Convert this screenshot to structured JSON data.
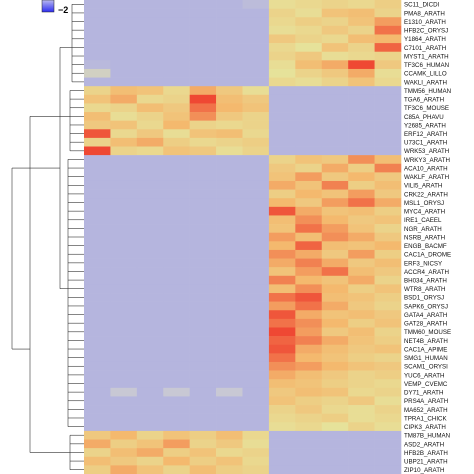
{
  "chart_data": {
    "type": "heatmap",
    "title": "",
    "xlabel": "",
    "ylabel": "",
    "legend": {
      "placement": "top-left",
      "visible_ticks": [
        "−2"
      ]
    },
    "color_scale": {
      "low": "#a9a9e4",
      "lowmid": "#c8c8d4",
      "mid": "#e6e29a",
      "midhigh": "#f4b96e",
      "high": "#ee3a2c"
    },
    "value_range": [
      -2,
      2
    ],
    "columns": 12,
    "rows": [
      {
        "label": "SC11_DICDI",
        "values": [
          -1.6,
          -1.6,
          -1.6,
          -1.6,
          -1.6,
          -1.6,
          -1.4,
          0.4,
          0.5,
          0.6,
          0.5,
          0.7
        ]
      },
      {
        "label": "PMA8_ARATH",
        "values": [
          -1.6,
          -1.6,
          -1.6,
          -1.6,
          -1.6,
          -1.6,
          -1.6,
          0.6,
          0.4,
          0.9,
          1.0,
          0.6
        ]
      },
      {
        "label": "E1310_ARATH",
        "values": [
          -1.6,
          -1.6,
          -1.6,
          -1.6,
          -1.6,
          -1.6,
          -1.6,
          0.5,
          0.7,
          0.6,
          0.9,
          1.3
        ]
      },
      {
        "label": "HFB2C_ORYSJ",
        "values": [
          -1.6,
          -1.6,
          -1.6,
          -1.6,
          -1.6,
          -1.6,
          -1.6,
          0.4,
          0.5,
          0.8,
          0.6,
          1.6
        ]
      },
      {
        "label": "Y1864_ARATH",
        "values": [
          -1.6,
          -1.6,
          -1.6,
          -1.6,
          -1.6,
          -1.6,
          -1.6,
          0.8,
          0.6,
          0.5,
          1.0,
          1.1
        ]
      },
      {
        "label": "C7101_ARATH",
        "values": [
          -1.6,
          -1.6,
          -1.6,
          -1.6,
          -1.6,
          -1.6,
          -1.6,
          0.5,
          0.3,
          0.9,
          0.6,
          1.7
        ]
      },
      {
        "label": "MYST1_ARATH",
        "values": [
          -1.6,
          -1.6,
          -1.6,
          -1.6,
          -1.6,
          -1.6,
          -1.6,
          0.6,
          0.8,
          0.4,
          0.5,
          0.6
        ]
      },
      {
        "label": "TF3C6_HUMAN",
        "values": [
          -1.5,
          -1.6,
          -1.6,
          -1.6,
          -1.6,
          -1.6,
          -1.6,
          0.4,
          1.0,
          1.2,
          1.9,
          0.8
        ]
      },
      {
        "label": "CCAMK_LILLO",
        "values": [
          -0.6,
          -1.6,
          -1.6,
          -1.6,
          -1.6,
          -1.6,
          -1.6,
          0.3,
          0.6,
          0.8,
          1.2,
          0.4
        ]
      },
      {
        "label": "WAKLI_ARATH",
        "values": [
          -1.6,
          -1.6,
          -1.6,
          -1.6,
          -1.6,
          -1.6,
          -1.6,
          0.5,
          0.4,
          0.6,
          0.9,
          0.5
        ]
      },
      {
        "label": "TMM56_HUMAN",
        "values": [
          0.6,
          1.0,
          0.9,
          0.5,
          1.2,
          0.8,
          0.4,
          -1.6,
          -1.6,
          -1.6,
          -1.6,
          -1.6
        ]
      },
      {
        "label": "TGA6_ARATH",
        "values": [
          0.9,
          1.2,
          0.5,
          0.6,
          1.9,
          1.0,
          0.8,
          -1.6,
          -1.6,
          -1.6,
          -1.6,
          -1.6
        ]
      },
      {
        "label": "TF3C6_MOUSE",
        "values": [
          0.5,
          0.6,
          1.0,
          0.8,
          1.6,
          1.1,
          0.9,
          -1.6,
          -1.6,
          -1.6,
          -1.6,
          -1.6
        ]
      },
      {
        "label": "C85A_PHAVU",
        "values": [
          1.0,
          0.4,
          0.6,
          0.9,
          1.4,
          0.8,
          0.6,
          -1.6,
          -1.6,
          -1.6,
          -1.6,
          -1.6
        ]
      },
      {
        "label": "Y2685_ARATH",
        "values": [
          0.8,
          0.9,
          0.5,
          1.1,
          0.6,
          0.5,
          0.6,
          -1.6,
          -1.6,
          -1.6,
          -1.6,
          -1.6
        ]
      },
      {
        "label": "ERF12_ARATH",
        "values": [
          1.8,
          0.5,
          0.8,
          0.4,
          0.9,
          1.0,
          0.5,
          -1.6,
          -1.6,
          -1.6,
          -1.6,
          -1.6
        ]
      },
      {
        "label": "U73C1_ARATH",
        "values": [
          0.6,
          1.0,
          1.2,
          0.7,
          0.5,
          0.6,
          0.7,
          -1.6,
          -1.6,
          -1.6,
          -1.6,
          -1.6
        ]
      },
      {
        "label": "WRK53_ARATH",
        "values": [
          1.9,
          0.6,
          0.5,
          0.9,
          0.8,
          0.4,
          0.6,
          -1.6,
          -1.6,
          -1.6,
          -1.6,
          -1.6
        ]
      },
      {
        "label": "WRKY3_ARATH",
        "values": [
          -1.6,
          -1.6,
          -1.6,
          -1.6,
          -1.6,
          -1.6,
          -1.6,
          0.6,
          0.9,
          0.8,
          1.4,
          1.0
        ]
      },
      {
        "label": "ACA10_ARATH",
        "values": [
          -1.6,
          -1.6,
          -1.6,
          -1.6,
          -1.6,
          -1.6,
          -1.6,
          0.8,
          0.6,
          1.2,
          0.7,
          1.5
        ]
      },
      {
        "label": "WAKLF_ARATH",
        "values": [
          -1.6,
          -1.6,
          -1.6,
          -1.6,
          -1.6,
          -1.6,
          -1.6,
          0.9,
          1.3,
          0.8,
          1.1,
          0.8
        ]
      },
      {
        "label": "VILI5_ARATH",
        "values": [
          -1.6,
          -1.6,
          -1.6,
          -1.6,
          -1.6,
          -1.6,
          -1.6,
          1.2,
          0.9,
          1.5,
          0.7,
          1.0
        ]
      },
      {
        "label": "CRK22_ARATH",
        "values": [
          -1.6,
          -1.6,
          -1.6,
          -1.6,
          -1.6,
          -1.6,
          -1.6,
          0.7,
          1.1,
          0.9,
          1.3,
          0.8
        ]
      },
      {
        "label": "MSL1_ORYSJ",
        "values": [
          -1.6,
          -1.6,
          -1.6,
          -1.6,
          -1.6,
          -1.6,
          -1.6,
          1.1,
          0.8,
          1.3,
          1.6,
          1.2
        ]
      },
      {
        "label": "MYC4_ARATH",
        "values": [
          -1.6,
          -1.6,
          -1.6,
          -1.6,
          -1.6,
          -1.6,
          -1.6,
          1.8,
          1.2,
          0.9,
          1.0,
          0.7
        ]
      },
      {
        "label": "IRE1_CAEEL",
        "values": [
          -1.6,
          -1.6,
          -1.6,
          -1.6,
          -1.6,
          -1.6,
          -1.6,
          1.0,
          1.4,
          1.1,
          0.8,
          0.9
        ]
      },
      {
        "label": "NGR_ARATH",
        "values": [
          -1.6,
          -1.6,
          -1.6,
          -1.6,
          -1.6,
          -1.6,
          -1.6,
          0.9,
          1.6,
          1.3,
          0.9,
          0.6
        ]
      },
      {
        "label": "NSRB_ARATH",
        "values": [
          -1.6,
          -1.6,
          -1.6,
          -1.6,
          -1.6,
          -1.6,
          -1.6,
          1.3,
          1.0,
          1.4,
          1.2,
          0.8
        ]
      },
      {
        "label": "ENGB_BACMF",
        "values": [
          -1.6,
          -1.6,
          -1.6,
          -1.6,
          -1.6,
          -1.6,
          -1.6,
          1.1,
          1.7,
          1.0,
          0.9,
          1.1
        ]
      },
      {
        "label": "CAC1A_DROME",
        "values": [
          -1.6,
          -1.6,
          -1.6,
          -1.6,
          -1.6,
          -1.6,
          -1.6,
          1.4,
          1.2,
          0.8,
          1.3,
          0.7
        ]
      },
      {
        "label": "ERF3_NICSY",
        "values": [
          -1.6,
          -1.6,
          -1.6,
          -1.6,
          -1.6,
          -1.6,
          -1.6,
          1.2,
          1.5,
          1.2,
          0.8,
          1.0
        ]
      },
      {
        "label": "ACCR4_ARATH",
        "values": [
          -1.6,
          -1.6,
          -1.6,
          -1.6,
          -1.6,
          -1.6,
          -1.6,
          0.9,
          1.3,
          1.6,
          1.0,
          0.8
        ]
      },
      {
        "label": "BH034_ARATH",
        "values": [
          -1.6,
          -1.6,
          -1.6,
          -1.6,
          -1.6,
          -1.6,
          -1.6,
          1.5,
          1.1,
          0.9,
          1.2,
          0.6
        ]
      },
      {
        "label": "WTR8_ARATH",
        "values": [
          -1.6,
          -1.6,
          -1.6,
          -1.6,
          -1.6,
          -1.6,
          -1.6,
          1.0,
          1.4,
          1.1,
          0.7,
          0.9
        ]
      },
      {
        "label": "BSD1_ORYSJ",
        "values": [
          -1.6,
          -1.6,
          -1.6,
          -1.6,
          -1.6,
          -1.6,
          -1.6,
          1.6,
          1.8,
          1.0,
          0.9,
          0.7
        ]
      },
      {
        "label": "SAPK6_ORYSJ",
        "values": [
          -1.6,
          -1.6,
          -1.6,
          -1.6,
          -1.6,
          -1.6,
          -1.6,
          1.3,
          1.6,
          1.2,
          0.8,
          0.6
        ]
      },
      {
        "label": "GATA4_ARATH",
        "values": [
          -1.6,
          -1.6,
          -1.6,
          -1.6,
          -1.6,
          -1.6,
          -1.6,
          1.8,
          1.2,
          0.9,
          1.0,
          0.8
        ]
      },
      {
        "label": "GAT28_ARATH",
        "values": [
          -1.6,
          -1.6,
          -1.6,
          -1.6,
          -1.6,
          -1.6,
          -1.6,
          1.6,
          1.4,
          1.1,
          0.7,
          0.9
        ]
      },
      {
        "label": "TMM60_MOUSE",
        "values": [
          -1.6,
          -1.6,
          -1.6,
          -1.6,
          -1.6,
          -1.6,
          -1.6,
          1.9,
          1.3,
          0.8,
          1.0,
          0.6
        ]
      },
      {
        "label": "NET4B_ARATH",
        "values": [
          -1.6,
          -1.6,
          -1.6,
          -1.6,
          -1.6,
          -1.6,
          -1.6,
          1.7,
          1.5,
          1.2,
          0.9,
          0.7
        ]
      },
      {
        "label": "CAC1A_APIME",
        "values": [
          -1.6,
          -1.6,
          -1.6,
          -1.6,
          -1.6,
          -1.6,
          -1.6,
          1.8,
          1.2,
          1.0,
          0.8,
          0.9
        ]
      },
      {
        "label": "SMG1_HUMAN",
        "values": [
          -1.6,
          -1.6,
          -1.6,
          -1.6,
          -1.6,
          -1.6,
          -1.6,
          1.6,
          1.1,
          0.9,
          0.7,
          0.6
        ]
      },
      {
        "label": "SCAM1_ORYSI",
        "values": [
          -1.6,
          -1.6,
          -1.6,
          -1.6,
          -1.6,
          -1.6,
          -1.6,
          1.4,
          1.3,
          1.1,
          0.9,
          0.8
        ]
      },
      {
        "label": "YUC6_ARATH",
        "values": [
          -1.6,
          -1.6,
          -1.6,
          -1.6,
          -1.6,
          -1.6,
          -1.6,
          1.2,
          1.0,
          0.8,
          0.6,
          0.7
        ]
      },
      {
        "label": "VEMP_CVEMC",
        "values": [
          -1.6,
          -1.6,
          -1.6,
          -1.6,
          -1.6,
          -1.6,
          -1.6,
          1.0,
          0.9,
          0.7,
          0.6,
          0.5
        ]
      },
      {
        "label": "DY71_ARATH",
        "values": [
          -1.6,
          -1.0,
          -1.6,
          -1.0,
          -1.6,
          -1.0,
          -1.6,
          0.8,
          1.0,
          0.9,
          0.5,
          0.6
        ]
      },
      {
        "label": "PRS4A_ARATH",
        "values": [
          -1.6,
          -1.6,
          -1.6,
          -1.6,
          -1.6,
          -1.6,
          -1.6,
          0.9,
          0.7,
          0.6,
          0.8,
          0.4
        ]
      },
      {
        "label": "MA652_ARATH",
        "values": [
          -1.6,
          -1.6,
          -1.6,
          -1.6,
          -1.6,
          -1.6,
          -1.6,
          0.6,
          0.8,
          0.5,
          0.4,
          0.6
        ]
      },
      {
        "label": "TPRA1_CHICK",
        "values": [
          -1.6,
          -1.6,
          -1.6,
          -1.6,
          -1.6,
          -1.6,
          -1.6,
          0.5,
          0.6,
          0.7,
          0.4,
          0.5
        ]
      },
      {
        "label": "CIPK3_ARATH",
        "values": [
          -1.6,
          -1.6,
          -1.6,
          -1.6,
          -1.6,
          -1.6,
          -1.6,
          0.4,
          0.5,
          0.3,
          0.6,
          0.4
        ]
      },
      {
        "label": "TM87B_HUMAN",
        "values": [
          0.8,
          1.1,
          0.6,
          0.9,
          0.7,
          1.0,
          0.5,
          -1.6,
          -1.6,
          -1.6,
          -1.6,
          -1.6
        ]
      },
      {
        "label": "ASD2_ARATH",
        "values": [
          1.2,
          0.7,
          0.9,
          1.3,
          0.6,
          0.8,
          0.4,
          -1.6,
          -1.6,
          -1.6,
          -1.6,
          -1.6
        ]
      },
      {
        "label": "HFB2B_ARATH",
        "values": [
          0.6,
          1.0,
          1.2,
          0.7,
          0.9,
          0.5,
          0.6,
          -1.6,
          -1.6,
          -1.6,
          -1.6,
          -1.6
        ]
      },
      {
        "label": "UBP21_ARATH",
        "values": [
          1.0,
          0.8,
          0.6,
          1.1,
          0.7,
          0.9,
          0.5,
          -1.6,
          -1.6,
          -1.6,
          -1.6,
          -1.6
        ]
      },
      {
        "label": "ZIP10_ARATH",
        "values": [
          0.7,
          1.2,
          0.9,
          0.6,
          1.0,
          0.7,
          0.6,
          -1.6,
          -1.6,
          -1.6,
          -1.6,
          -1.6
        ]
      }
    ]
  }
}
